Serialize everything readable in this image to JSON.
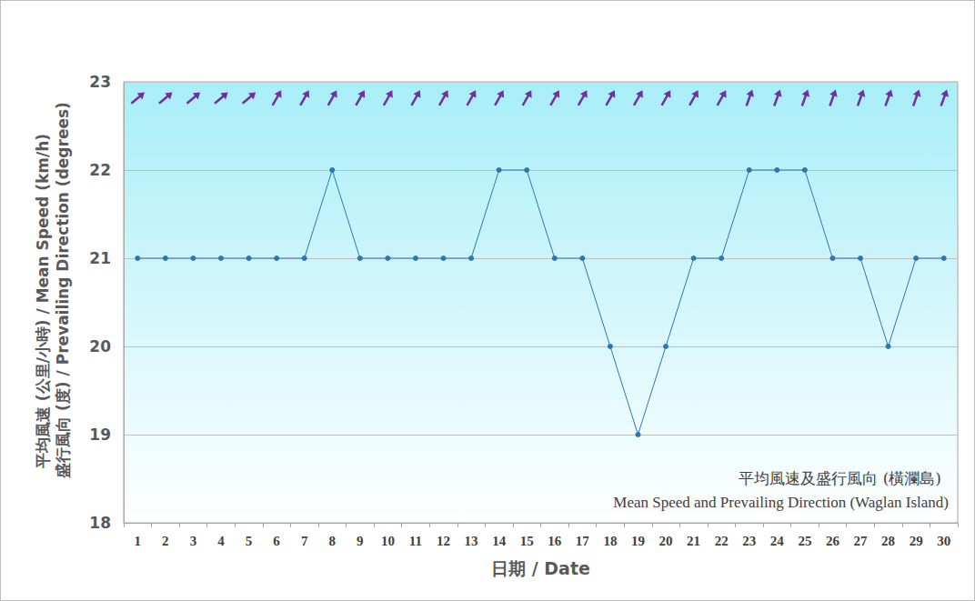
{
  "chart_data": {
    "type": "line",
    "title": "平均風速及盛行風向 (橫瀾島)\nMean Speed and Prevailing Direction (Waglan Island)",
    "x_label": "日期 / Date",
    "y_label": "平均風速 (公里/小時) / Mean Speed (km/h)\n盛行風向 (度) / Prevailing Direction (degrees)",
    "categories": [
      "1",
      "2",
      "3",
      "4",
      "5",
      "6",
      "7",
      "8",
      "9",
      "10",
      "11",
      "12",
      "13",
      "14",
      "15",
      "16",
      "17",
      "18",
      "19",
      "20",
      "21",
      "22",
      "23",
      "24",
      "25",
      "26",
      "27",
      "28",
      "29",
      "30"
    ],
    "values": [
      21,
      21,
      21,
      21,
      21,
      21,
      21,
      22,
      21,
      21,
      21,
      21,
      21,
      22,
      22,
      21,
      21,
      20,
      19,
      20,
      21,
      21,
      22,
      22,
      22,
      21,
      21,
      20,
      21,
      21
    ],
    "directions": [
      230,
      230,
      230,
      230,
      230,
      210,
      210,
      210,
      210,
      210,
      210,
      210,
      210,
      210,
      210,
      210,
      210,
      210,
      210,
      210,
      210,
      210,
      200,
      200,
      200,
      200,
      200,
      200,
      200,
      200
    ],
    "color": "#2e75b6",
    "direction_color": "#7030a0",
    "marker": "circle",
    "ylim": [
      18,
      23
    ],
    "yticks": [
      18,
      19,
      20,
      21,
      22,
      23
    ],
    "grid": true
  }
}
